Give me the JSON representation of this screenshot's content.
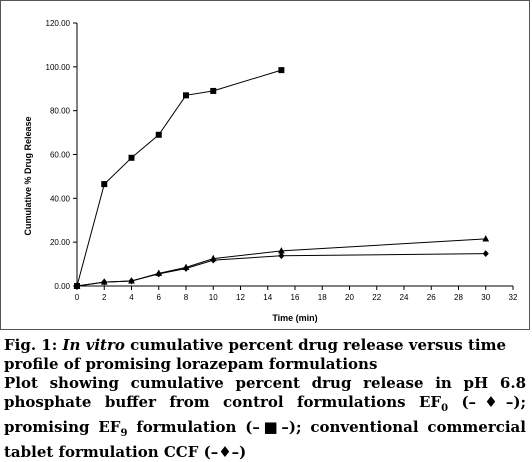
{
  "chart_data": {
    "type": "line",
    "ylabel": "Cumulative % Drug Release",
    "xlabel": "Time (min)",
    "xlim": [
      0,
      32
    ],
    "ylim": [
      0,
      120
    ],
    "xticks": [
      "0",
      "2",
      "4",
      "6",
      "8",
      "10",
      "12",
      "14",
      "16",
      "18",
      "20",
      "22",
      "24",
      "26",
      "28",
      "30",
      "32"
    ],
    "yticks": [
      "0.00",
      "20.00",
      "40.00",
      "60.00",
      "80.00",
      "100.00",
      "120.00"
    ],
    "grid": false,
    "legend": "none",
    "series": [
      {
        "marker": "diamond",
        "color": "#000000",
        "points": [
          [
            0,
            0
          ],
          [
            2,
            1.8
          ],
          [
            4,
            2.3
          ],
          [
            6,
            5.5
          ],
          [
            8,
            8.0
          ],
          [
            10,
            11.8
          ],
          [
            15,
            13.8
          ],
          [
            30,
            14.8
          ]
        ]
      },
      {
        "marker": "square",
        "color": "#000000",
        "points": [
          [
            0,
            0
          ],
          [
            2,
            46.5
          ],
          [
            4,
            58.5
          ],
          [
            6,
            69.0
          ],
          [
            8,
            87.0
          ],
          [
            10,
            89.0
          ],
          [
            15,
            98.5
          ]
        ]
      },
      {
        "marker": "triangle",
        "color": "#000000",
        "points": [
          [
            0,
            0
          ],
          [
            2,
            1.8
          ],
          [
            4,
            2.3
          ],
          [
            6,
            5.8
          ],
          [
            8,
            8.5
          ],
          [
            10,
            12.5
          ],
          [
            15,
            16.0
          ],
          [
            30,
            21.5
          ]
        ]
      }
    ]
  },
  "caption": {
    "fig_label": "Fig. 1:",
    "title_italic": "In vitro",
    "title_rest": "cumulative percent drug release versus time profile of promising lorazepam formulations",
    "body_part1": "Plot showing cumulative percent drug release in pH 6.8 phosphate buffer from control formulations EF",
    "sub_1": "0",
    "marker_1": "(–♦–);",
    "body_part2": "promising EF",
    "sub_2": "9",
    "body_part3": "formulation",
    "marker_2": "(–■–);",
    "body_part4": "conventional commercial tablet formulation CCF",
    "marker_3": "(–♦–)"
  }
}
